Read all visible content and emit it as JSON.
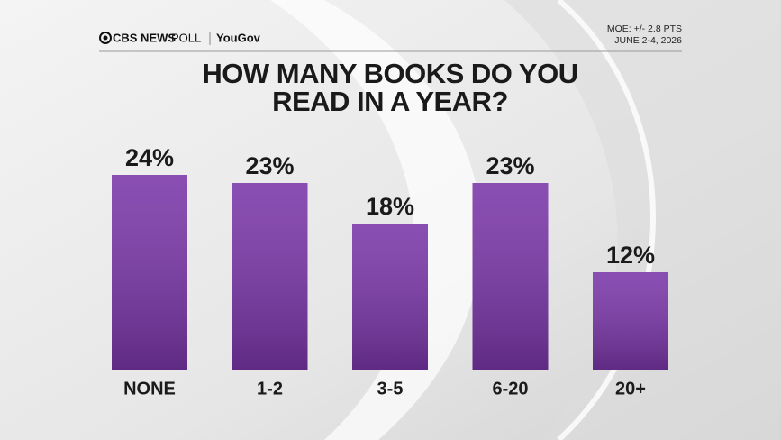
{
  "chart_data": {
    "type": "bar",
    "brand": "CBS NEWS",
    "brand_suffix": "POLL",
    "partner": "YouGov",
    "notes": [
      "MOE: +/- 2.8 PTS",
      "JUNE 2-4, 2026"
    ],
    "title_lines": [
      "HOW MANY BOOKS DO YOU",
      "READ IN A YEAR?"
    ],
    "categories": [
      "NONE",
      "1-2",
      "3-5",
      "6-20",
      "20+"
    ],
    "values": [
      24,
      23,
      18,
      23,
      12
    ],
    "value_labels": [
      "24%",
      "23%",
      "18%",
      "23%",
      "12%"
    ],
    "color": "#7a36a8"
  }
}
